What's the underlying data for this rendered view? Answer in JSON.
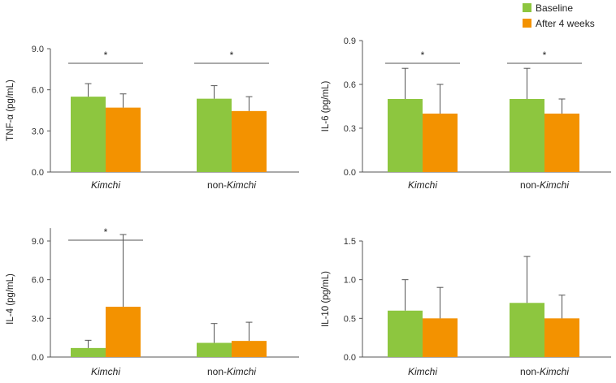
{
  "legend": {
    "items": [
      {
        "label": "Baseline",
        "color": "#8dc63f"
      },
      {
        "label": "After 4 weeks",
        "color": "#f39200"
      }
    ]
  },
  "chart_data": [
    {
      "type": "bar",
      "ylabel": "TNF-α (pg/mL)",
      "yticks": [
        "0.0",
        "3.0",
        "6.0",
        "9.0"
      ],
      "ylim": [
        0,
        9
      ],
      "categories": [
        {
          "prefix": "",
          "italic": "Kimchi"
        },
        {
          "prefix": "non-",
          "italic": "Kimchi"
        }
      ],
      "series": [
        {
          "name": "Baseline",
          "values": [
            5.5,
            5.35
          ],
          "errors": [
            0.95,
            0.95
          ]
        },
        {
          "name": "After 4 weeks",
          "values": [
            4.7,
            4.45
          ],
          "errors": [
            1.0,
            1.05
          ]
        }
      ],
      "significance": [
        "*",
        "*"
      ]
    },
    {
      "type": "bar",
      "ylabel": "IL-6 (pg/mL)",
      "yticks": [
        "0.0",
        "0.3",
        "0.6",
        "0.9"
      ],
      "ylim": [
        0,
        0.9
      ],
      "categories": [
        {
          "prefix": "",
          "italic": "Kimchi"
        },
        {
          "prefix": "non-",
          "italic": "Kimchi"
        }
      ],
      "series": [
        {
          "name": "Baseline",
          "values": [
            0.5,
            0.5
          ],
          "errors": [
            0.21,
            0.21
          ]
        },
        {
          "name": "After 4 weeks",
          "values": [
            0.4,
            0.4
          ],
          "errors": [
            0.2,
            0.1
          ]
        }
      ],
      "significance": [
        "*",
        "*"
      ]
    },
    {
      "type": "bar",
      "ylabel": "IL-4 (pg/mL)",
      "yticks": [
        "0.0",
        "3.0",
        "6.0",
        "9.0"
      ],
      "ylim": [
        0,
        10
      ],
      "categories": [
        {
          "prefix": "",
          "italic": "Kimchi"
        },
        {
          "prefix": "non-",
          "italic": "Kimchi"
        }
      ],
      "series": [
        {
          "name": "Baseline",
          "values": [
            0.7,
            1.1
          ],
          "errors": [
            0.6,
            1.5
          ]
        },
        {
          "name": "After 4 weeks",
          "values": [
            3.9,
            1.25
          ],
          "errors": [
            5.6,
            1.45
          ]
        }
      ],
      "significance": [
        "*",
        ""
      ]
    },
    {
      "type": "bar",
      "ylabel": "IL-10 (pg/mL)",
      "yticks": [
        "0.0",
        "0.5",
        "1.0",
        "1.5"
      ],
      "ylim": [
        0,
        1.5
      ],
      "categories": [
        {
          "prefix": "",
          "italic": "Kimchi"
        },
        {
          "prefix": "non-",
          "italic": "Kimchi"
        }
      ],
      "series": [
        {
          "name": "Baseline",
          "values": [
            0.6,
            0.7
          ],
          "errors": [
            0.4,
            0.6
          ]
        },
        {
          "name": "After 4 weeks",
          "values": [
            0.5,
            0.5
          ],
          "errors": [
            0.4,
            0.3
          ]
        }
      ],
      "significance": [
        "",
        ""
      ]
    }
  ]
}
